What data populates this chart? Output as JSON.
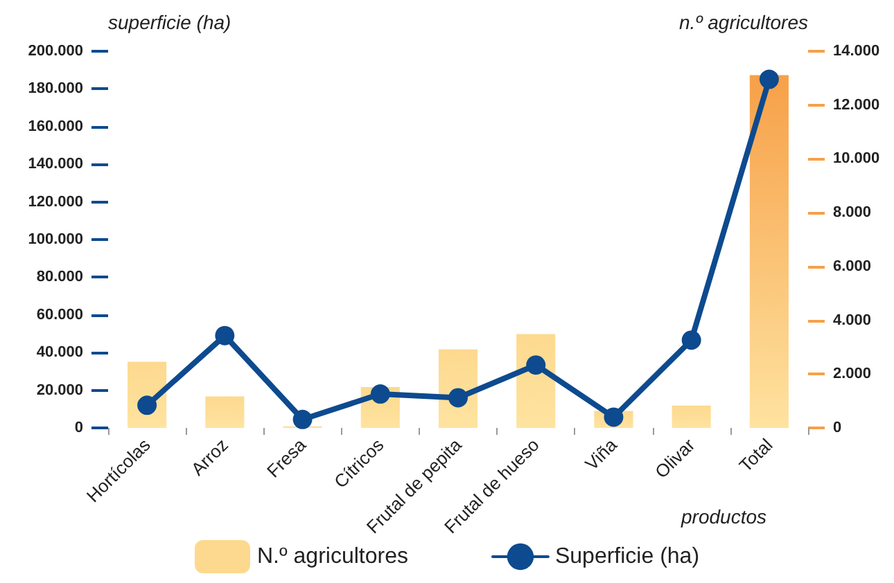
{
  "chart_data": {
    "type": "bar",
    "categories": [
      "Hortícolas",
      "Arroz",
      "Fresa",
      "Cítricos",
      "Frutal de pepita",
      "Frutal de hueso",
      "Viña",
      "Olivar",
      "Total"
    ],
    "xlabel": "productos",
    "ylabel": "superficie (ha)",
    "y2label": "n.º agricultores",
    "series": [
      {
        "name": "N.º agricultores",
        "axis": "y2",
        "color": "#fdd98f",
        "colors": [
          "#fdd98f",
          "#fdd98f",
          "#fdd98f",
          "#fdd98f",
          "#fdd98f",
          "#fdd98f",
          "#fdd98f",
          "#fdd98f",
          "#f7a048"
        ],
        "values": [
          2460,
          1170,
          60,
          1520,
          2920,
          3490,
          630,
          830,
          13110
        ]
      },
      {
        "name": "Superficie (ha)",
        "type": "line",
        "color": "#0d4a8f",
        "marker": "circle",
        "line_style": "solid",
        "values": [
          12000,
          49000,
          4500,
          18000,
          16000,
          33400,
          5700,
          46600,
          185100
        ]
      }
    ],
    "ylim": [
      0,
      200000
    ],
    "yticks": [
      {
        "value": 0,
        "label": "0"
      },
      {
        "value": 20000,
        "label": "20.000"
      },
      {
        "value": 40000,
        "label": "40.000"
      },
      {
        "value": 60000,
        "label": "60.000"
      },
      {
        "value": 80000,
        "label": "80.000"
      },
      {
        "value": 100000,
        "label": "100.000"
      },
      {
        "value": 120000,
        "label": "120.000"
      },
      {
        "value": 140000,
        "label": "140.000"
      },
      {
        "value": 160000,
        "label": "160.000"
      },
      {
        "value": 180000,
        "label": "180.000"
      },
      {
        "value": 200000,
        "label": "200.000"
      }
    ],
    "y2lim": [
      0,
      14000
    ],
    "y2ticks": [
      {
        "value": 0,
        "label": "0"
      },
      {
        "value": 2000,
        "label": "2.000"
      },
      {
        "value": 4000,
        "label": "4.000"
      },
      {
        "value": 6000,
        "label": "6.000"
      },
      {
        "value": 8000,
        "label": "8.000"
      },
      {
        "value": 10000,
        "label": "10.000"
      },
      {
        "value": 12000,
        "label": "12.000"
      },
      {
        "value": 14000,
        "label": "14.000"
      }
    ],
    "grid": false,
    "legend": "bottom"
  }
}
